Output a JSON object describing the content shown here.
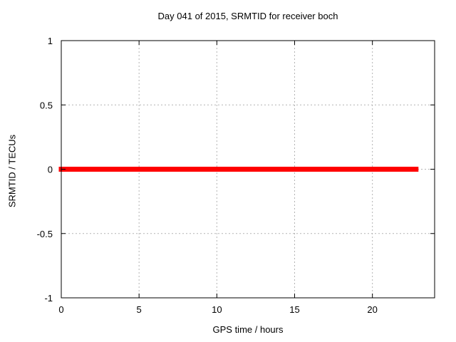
{
  "chart_data": {
    "type": "line",
    "title": "Day 041 of 2015, SRMTID for receiver boch",
    "xlabel": "GPS time / hours",
    "ylabel": "SRMTID / TECUs",
    "xlim": [
      0,
      24
    ],
    "ylim": [
      -1,
      1
    ],
    "xticks": [
      0,
      5,
      10,
      15,
      20
    ],
    "xtick_labels": [
      "0",
      "5",
      "10",
      "15",
      "20"
    ],
    "yticks": [
      1,
      0.5,
      0,
      -0.5,
      -1
    ],
    "ytick_labels": [
      "1",
      "0.5",
      "0",
      "-0.5",
      "-1"
    ],
    "grid": true,
    "legend": "none",
    "colors": {
      "series": "#ff0000",
      "grid": "#b3b3b3",
      "axis": "#000000",
      "background": "#ffffff"
    },
    "series": [
      {
        "name": "SRMTID",
        "x": [
          0,
          22.8
        ],
        "y": [
          0,
          0
        ],
        "color": "#ff0000",
        "linewidth": 7
      }
    ]
  }
}
